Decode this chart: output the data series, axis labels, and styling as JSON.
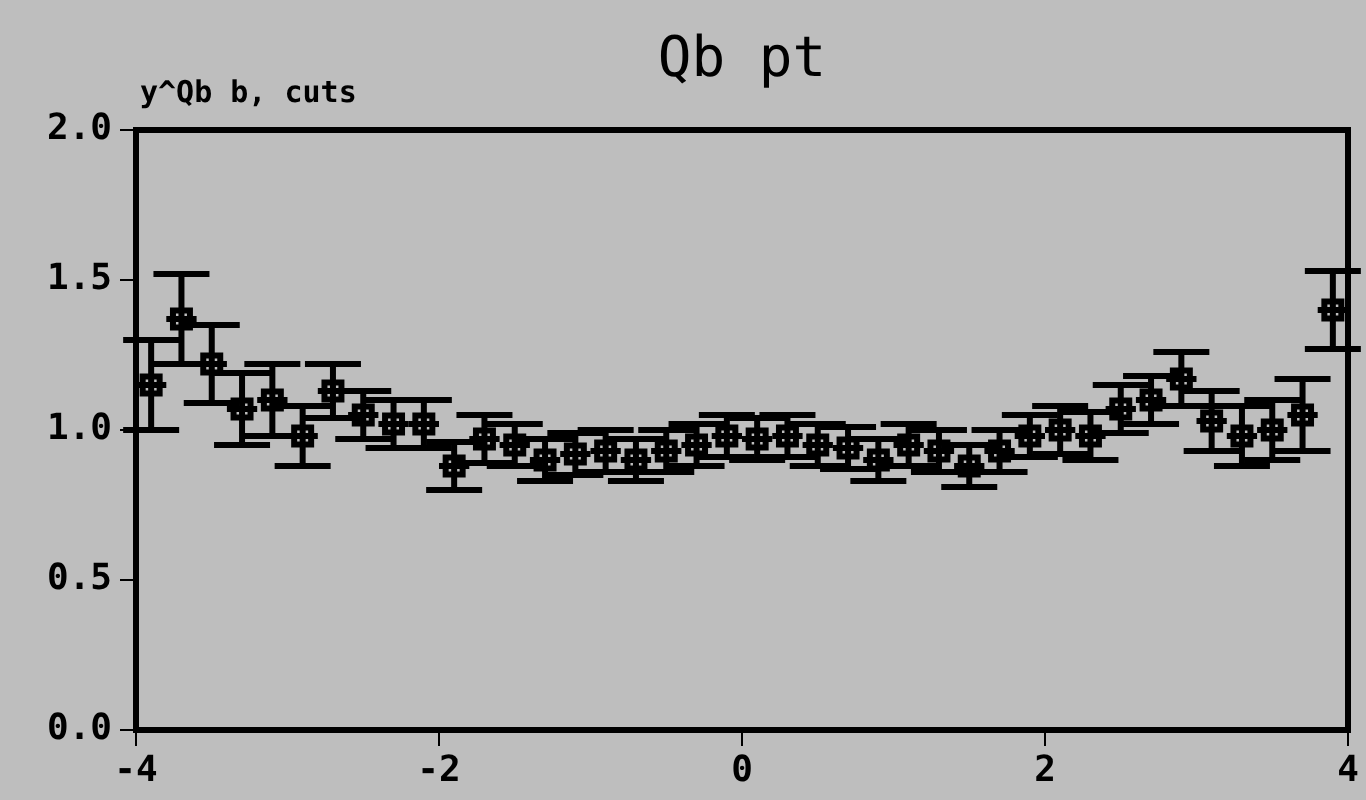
{
  "chart_data": {
    "type": "scatter",
    "title": "Qb pt",
    "ylabel": "y^Qb b, cuts",
    "marker": "square",
    "x": [
      -3.9,
      -3.7,
      -3.5,
      -3.3,
      -3.1,
      -2.9,
      -2.7,
      -2.5,
      -2.3,
      -2.1,
      -1.9,
      -1.7,
      -1.5,
      -1.3,
      -1.1,
      -0.9,
      -0.7,
      -0.5,
      -0.3,
      -0.1,
      0.1,
      0.3,
      0.5,
      0.7,
      0.9,
      1.1,
      1.3,
      1.5,
      1.7,
      1.9,
      2.1,
      2.3,
      2.5,
      2.7,
      2.9,
      3.1,
      3.3,
      3.5,
      3.7,
      3.9
    ],
    "values": [
      1.15,
      1.37,
      1.22,
      1.07,
      1.1,
      0.98,
      1.13,
      1.05,
      1.02,
      1.02,
      0.88,
      0.97,
      0.95,
      0.9,
      0.92,
      0.93,
      0.9,
      0.93,
      0.95,
      0.98,
      0.97,
      0.98,
      0.95,
      0.94,
      0.9,
      0.95,
      0.93,
      0.88,
      0.93,
      0.98,
      1.0,
      0.98,
      1.07,
      1.1,
      1.17,
      1.03,
      0.98,
      1.0,
      1.05,
      1.4
    ],
    "errors": [
      0.15,
      0.15,
      0.13,
      0.12,
      0.12,
      0.1,
      0.09,
      0.08,
      0.08,
      0.08,
      0.08,
      0.08,
      0.07,
      0.07,
      0.07,
      0.07,
      0.07,
      0.07,
      0.07,
      0.07,
      0.07,
      0.07,
      0.07,
      0.07,
      0.07,
      0.07,
      0.07,
      0.07,
      0.07,
      0.07,
      0.08,
      0.08,
      0.08,
      0.08,
      0.09,
      0.1,
      0.1,
      0.1,
      0.12,
      0.13
    ],
    "xerrors": [
      0.1,
      0.1,
      0.1,
      0.1,
      0.1,
      0.1,
      0.1,
      0.1,
      0.1,
      0.1,
      0.1,
      0.1,
      0.1,
      0.1,
      0.1,
      0.1,
      0.1,
      0.1,
      0.1,
      0.1,
      0.1,
      0.1,
      0.1,
      0.1,
      0.1,
      0.1,
      0.1,
      0.1,
      0.1,
      0.1,
      0.1,
      0.1,
      0.1,
      0.1,
      0.1,
      0.1,
      0.1,
      0.1,
      0.1,
      0.1
    ],
    "color": "#000000",
    "xlim": [
      -4,
      4
    ],
    "xticks": [
      -4,
      -2,
      0,
      2,
      4
    ],
    "ylim": [
      0,
      2
    ],
    "yticks": [
      {
        "value": 0,
        "label": "0.0"
      },
      0.5,
      {
        "value": 1,
        "label": "1.0"
      },
      1.5,
      {
        "value": 2,
        "label": "2.0"
      }
    ]
  }
}
